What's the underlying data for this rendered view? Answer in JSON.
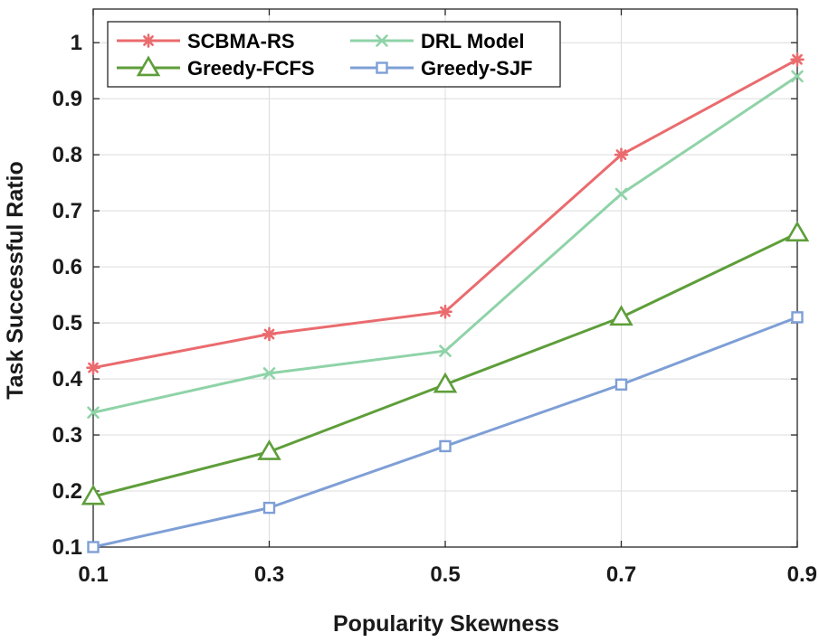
{
  "chart_data": {
    "type": "line",
    "title": "",
    "xlabel": "Popularity Skewness",
    "ylabel": "Task Successful Ratio",
    "x": [
      0.1,
      0.3,
      0.5,
      0.7,
      0.9
    ],
    "x_tick_labels": [
      "0.1",
      "0.3",
      "0.5",
      "0.7",
      "0.9"
    ],
    "y_ticks": [
      0.1,
      0.2,
      0.3,
      0.4,
      0.5,
      0.6,
      0.7,
      0.8,
      0.9,
      1
    ],
    "y_tick_labels": [
      "0.1",
      "0.2",
      "0.3",
      "0.4",
      "0.5",
      "0.6",
      "0.7",
      "0.8",
      "0.9",
      "1"
    ],
    "xlim": [
      0.1,
      0.9
    ],
    "ylim": [
      0.1,
      1.06
    ],
    "grid": true,
    "legend_position": "top-left",
    "series": [
      {
        "name": "SCBMA-RS",
        "values": [
          0.42,
          0.48,
          0.52,
          0.8,
          0.97
        ],
        "color": "#ea6b6e",
        "marker": "asterisk"
      },
      {
        "name": "DRL Model",
        "values": [
          0.34,
          0.41,
          0.45,
          0.73,
          0.94
        ],
        "color": "#8fd3a8",
        "marker": "x"
      },
      {
        "name": "Greedy-FCFS",
        "values": [
          0.19,
          0.27,
          0.39,
          0.51,
          0.66
        ],
        "color": "#5e9e3a",
        "marker": "triangle"
      },
      {
        "name": "Greedy-SJF",
        "values": [
          0.1,
          0.17,
          0.28,
          0.39,
          0.51
        ],
        "color": "#7e9fd6",
        "marker": "square"
      }
    ]
  }
}
